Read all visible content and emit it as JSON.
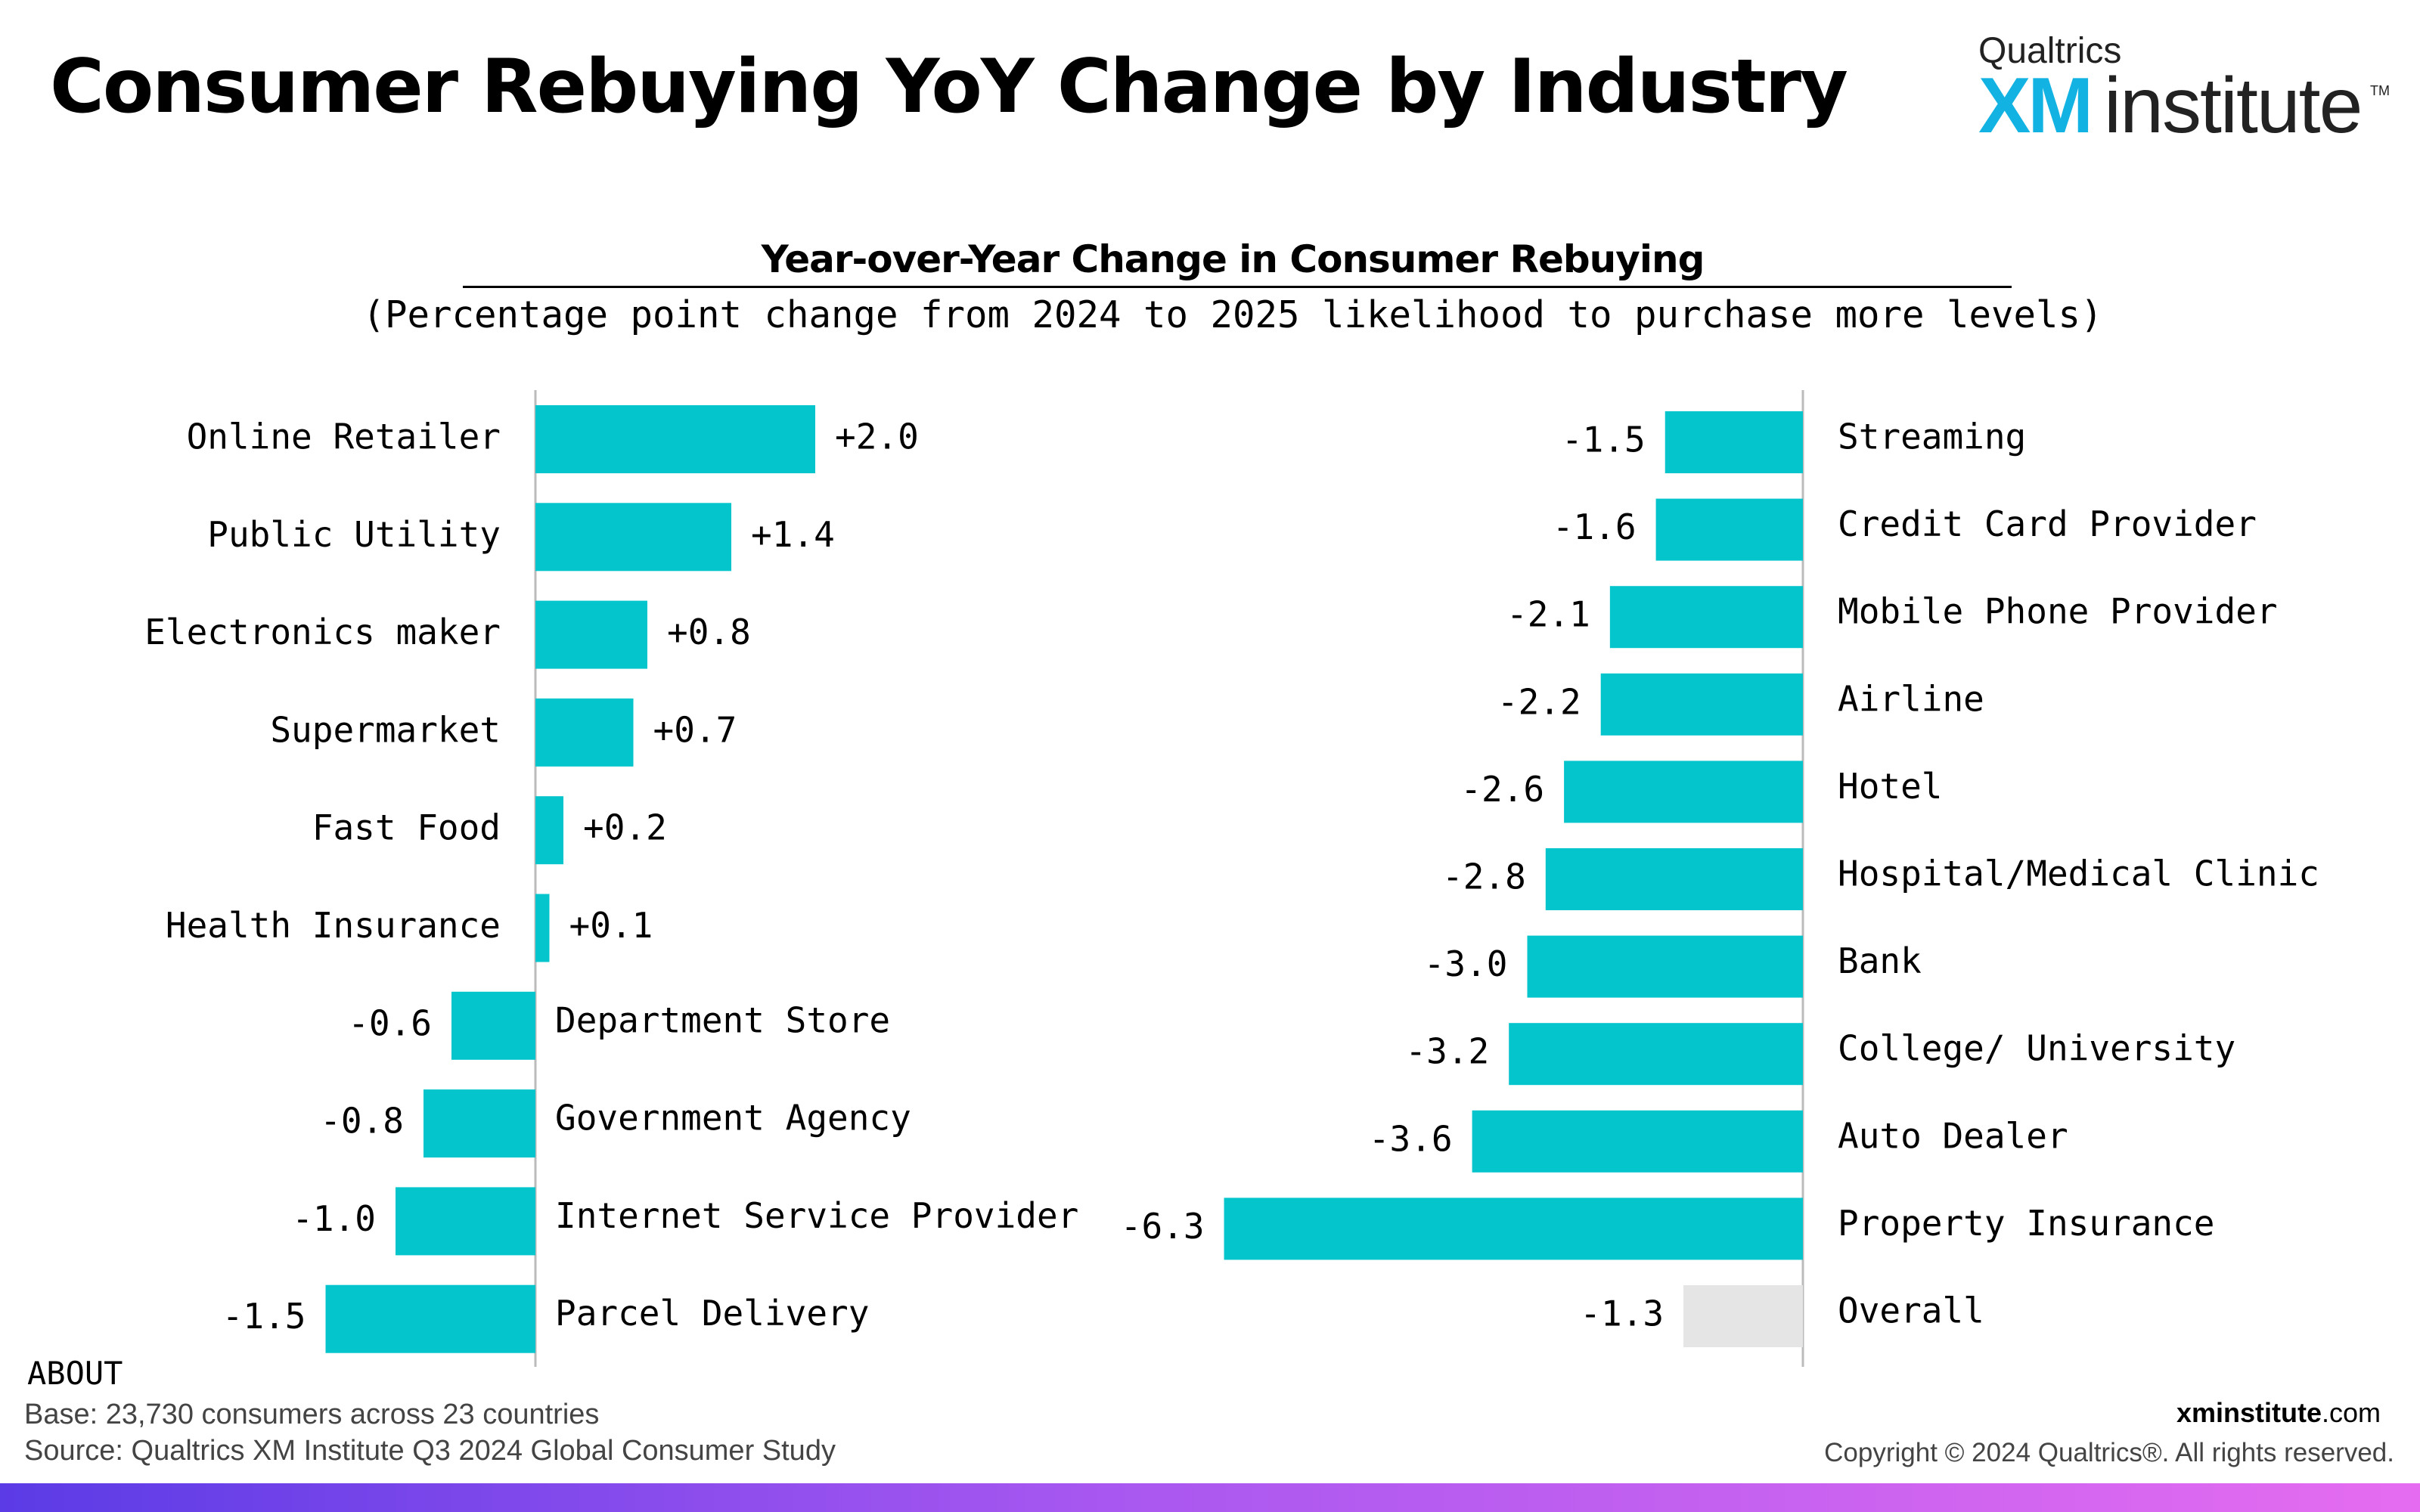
{
  "page": {
    "title": "Consumer Rebuying YoY Change by Industry",
    "logo": {
      "top": "Qualtrics",
      "xm": "XM",
      "institute": "institute",
      "tm": "TM"
    },
    "about_label": "ABOUT",
    "base_label": "Base:",
    "base_text": " 23,730 consumers across 23 countries",
    "source_label": "Source:",
    "source_text": " Qualtrics XM Institute Q3 2024 Global Consumer Study",
    "site_bold": "xminstitute",
    "site_rest": ".com",
    "copyright": "Copyright © 2024 Qualtrics®. All rights reserved."
  },
  "chart_data": [
    {
      "type": "bar",
      "orientation": "horizontal",
      "title": "Year-over-Year Change in Consumer Rebuying",
      "subtitle": "(Percentage point change from 2024 to 2025 likelihood to purchase more levels)",
      "categories": [
        "Online Retailer",
        "Public Utility",
        "Electronics maker",
        "Supermarket",
        "Fast Food",
        "Health Insurance",
        "Department Store",
        "Government Agency",
        "Internet Service Provider",
        "Parcel Delivery"
      ],
      "values": [
        2.0,
        1.4,
        0.8,
        0.7,
        0.2,
        0.1,
        -0.6,
        -0.8,
        -1.0,
        -1.5
      ],
      "labels": [
        "+2.0",
        "+1.4",
        "+0.8",
        "+0.7",
        "+0.2",
        "+0.1",
        "-0.6",
        "-0.8",
        "-1.0",
        "-1.5"
      ],
      "colors": {
        "bar": "#04c5cc",
        "axis": "#bbbbbb"
      }
    },
    {
      "type": "bar",
      "orientation": "horizontal",
      "categories": [
        "Streaming",
        "Credit Card Provider",
        "Mobile Phone Provider",
        "Airline",
        "Hotel",
        "Hospital/Medical Clinic",
        "Bank",
        "College/ University",
        "Auto Dealer",
        "Property Insurance",
        "Overall"
      ],
      "values": [
        -1.5,
        -1.6,
        -2.1,
        -2.2,
        -2.6,
        -2.8,
        -3.0,
        -3.2,
        -3.6,
        -6.3,
        -1.3
      ],
      "labels": [
        "-1.5",
        "-1.6",
        "-2.1",
        "-2.2",
        "-2.6",
        "-2.8",
        "-3.0",
        "-3.2",
        "-3.6",
        "-6.3",
        "-1.3"
      ],
      "highlight": {
        "category": "Overall",
        "color": "#e5e5e5"
      },
      "colors": {
        "bar": "#04c5cc",
        "axis": "#bbbbbb"
      }
    }
  ]
}
